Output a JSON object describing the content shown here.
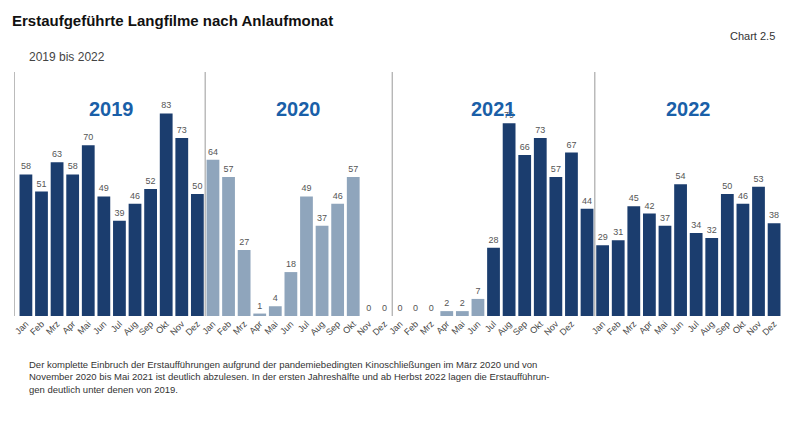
{
  "chart_data": {
    "type": "bar",
    "title": "Erstaufgeführte Langfilme nach Anlaufmonat",
    "subtitle": "2019 bis 2022",
    "chart_label": "Chart 2.5",
    "footnote": "Der komplette Einbruch der Erstaufführungen aufgrund der pandemiebedingten Kinoschließungen im März 2020 und von\nNovember 2020 bis Mai 2021 ist deutlich abzulesen. In der ersten Jahreshälfte und ab Herbst 2022 lagen die Erstaufführun-\ngen deutlich unter denen von 2019.",
    "categories": [
      "Jan",
      "Feb",
      "Mrz",
      "Apr",
      "Mai",
      "Jun",
      "Jul",
      "Aug",
      "Sep",
      "Okt",
      "Nov",
      "Dez",
      "Jan",
      "Feb",
      "Mrz",
      "Apr",
      "Mai",
      "Jun",
      "Jul",
      "Aug",
      "Sep",
      "Okt",
      "Nov",
      "Dez",
      "Jan",
      "Feb",
      "Mrz",
      "Apr",
      "Mai",
      "Jun",
      "Jul",
      "Aug",
      "Sep",
      "Okt",
      "Nov",
      "Dez",
      null,
      "Jan",
      "Feb",
      "Mrz",
      "Apr",
      "Mai",
      "Jun",
      "Jul",
      "Aug",
      "Sep",
      "Okt",
      "Nov",
      "Dez"
    ],
    "values": [
      58,
      51,
      63,
      58,
      70,
      49,
      39,
      46,
      52,
      83,
      73,
      50,
      64,
      57,
      27,
      1,
      4,
      18,
      49,
      37,
      46,
      57,
      0,
      0,
      0,
      0,
      0,
      2,
      2,
      7,
      28,
      79,
      66,
      73,
      57,
      67,
      44,
      29,
      31,
      45,
      42,
      37,
      54,
      34,
      32,
      50,
      46,
      53,
      38
    ],
    "colors": [
      "#1b3d6e",
      "#1b3d6e",
      "#1b3d6e",
      "#1b3d6e",
      "#1b3d6e",
      "#1b3d6e",
      "#1b3d6e",
      "#1b3d6e",
      "#1b3d6e",
      "#1b3d6e",
      "#1b3d6e",
      "#1b3d6e",
      "#8fa5bc",
      "#8fa5bc",
      "#8fa5bc",
      "#8fa5bc",
      "#8fa5bc",
      "#8fa5bc",
      "#8fa5bc",
      "#8fa5bc",
      "#8fa5bc",
      "#8fa5bc",
      "#8fa5bc",
      "#8fa5bc",
      "#8fa5bc",
      "#8fa5bc",
      "#8fa5bc",
      "#8fa5bc",
      "#8fa5bc",
      "#8fa5bc",
      "#1b3d6e",
      "#1b3d6e",
      "#1b3d6e",
      "#1b3d6e",
      "#1b3d6e",
      "#1b3d6e",
      "#1b3d6e",
      "#1b3d6e",
      "#1b3d6e",
      "#1b3d6e",
      "#1b3d6e",
      "#1b3d6e",
      "#1b3d6e",
      "#1b3d6e",
      "#1b3d6e",
      "#1b3d6e",
      "#1b3d6e",
      "#1b3d6e",
      "#1b3d6e"
    ],
    "annotations": [
      {
        "text": "2019",
        "color": "#1a5fa8"
      },
      {
        "text": "2020",
        "color": "#1a5fa8"
      },
      {
        "text": "2021",
        "color": "#1a5fa8"
      },
      {
        "text": "2022",
        "color": "#1a5fa8"
      }
    ],
    "ylim": [
      0,
      100
    ],
    "data_labels": true,
    "tick_labels": "x",
    "grid": false
  }
}
